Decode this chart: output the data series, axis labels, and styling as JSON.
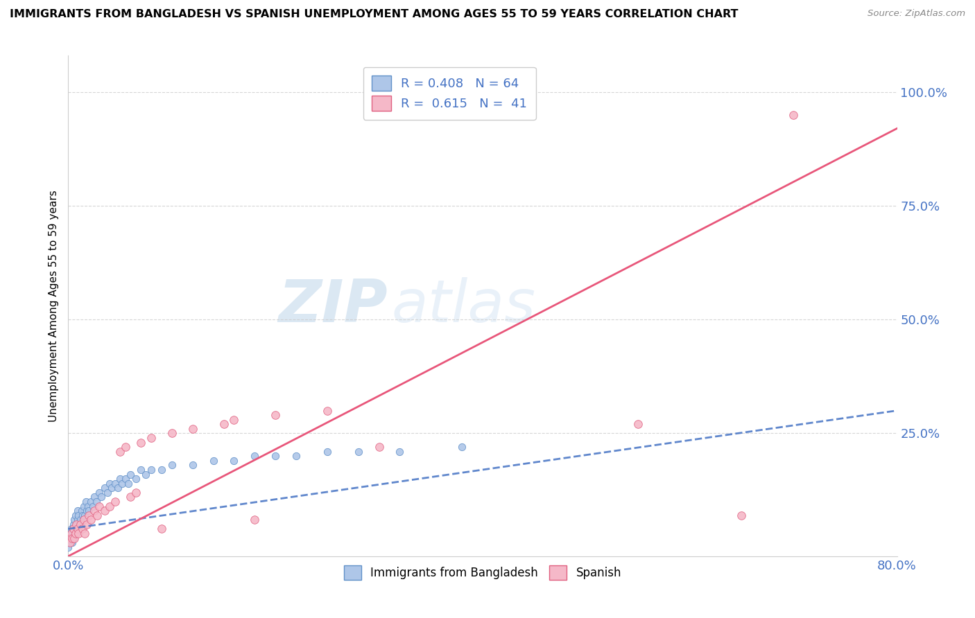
{
  "title": "IMMIGRANTS FROM BANGLADESH VS SPANISH UNEMPLOYMENT AMONG AGES 55 TO 59 YEARS CORRELATION CHART",
  "source": "Source: ZipAtlas.com",
  "xlabel_bottom_left": "0.0%",
  "xlabel_bottom_right": "80.0%",
  "ylabel": "Unemployment Among Ages 55 to 59 years",
  "y_tick_labels": [
    "100.0%",
    "75.0%",
    "50.0%",
    "25.0%"
  ],
  "y_tick_values": [
    1.0,
    0.75,
    0.5,
    0.25
  ],
  "x_range": [
    0.0,
    0.8
  ],
  "y_range": [
    -0.02,
    1.08
  ],
  "blue_R": 0.408,
  "blue_N": 64,
  "pink_R": 0.615,
  "pink_N": 41,
  "blue_color": "#aec6e8",
  "pink_color": "#f5b8c8",
  "blue_edge_color": "#6090c8",
  "pink_edge_color": "#e06080",
  "blue_line_color": "#4472c4",
  "pink_line_color": "#e8567a",
  "blue_scatter": [
    [
      0.0,
      0.0
    ],
    [
      0.001,
      0.01
    ],
    [
      0.001,
      0.02
    ],
    [
      0.002,
      0.01
    ],
    [
      0.002,
      0.03
    ],
    [
      0.003,
      0.02
    ],
    [
      0.003,
      0.04
    ],
    [
      0.004,
      0.01
    ],
    [
      0.004,
      0.03
    ],
    [
      0.005,
      0.02
    ],
    [
      0.005,
      0.05
    ],
    [
      0.006,
      0.03
    ],
    [
      0.006,
      0.06
    ],
    [
      0.007,
      0.04
    ],
    [
      0.007,
      0.07
    ],
    [
      0.008,
      0.03
    ],
    [
      0.008,
      0.05
    ],
    [
      0.009,
      0.06
    ],
    [
      0.009,
      0.08
    ],
    [
      0.01,
      0.04
    ],
    [
      0.01,
      0.07
    ],
    [
      0.011,
      0.05
    ],
    [
      0.012,
      0.06
    ],
    [
      0.013,
      0.08
    ],
    [
      0.014,
      0.07
    ],
    [
      0.015,
      0.09
    ],
    [
      0.016,
      0.07
    ],
    [
      0.017,
      0.1
    ],
    [
      0.018,
      0.08
    ],
    [
      0.019,
      0.09
    ],
    [
      0.02,
      0.08
    ],
    [
      0.022,
      0.1
    ],
    [
      0.024,
      0.09
    ],
    [
      0.025,
      0.11
    ],
    [
      0.027,
      0.1
    ],
    [
      0.03,
      0.12
    ],
    [
      0.032,
      0.11
    ],
    [
      0.035,
      0.13
    ],
    [
      0.038,
      0.12
    ],
    [
      0.04,
      0.14
    ],
    [
      0.042,
      0.13
    ],
    [
      0.045,
      0.14
    ],
    [
      0.048,
      0.13
    ],
    [
      0.05,
      0.15
    ],
    [
      0.052,
      0.14
    ],
    [
      0.055,
      0.15
    ],
    [
      0.058,
      0.14
    ],
    [
      0.06,
      0.16
    ],
    [
      0.065,
      0.15
    ],
    [
      0.07,
      0.17
    ],
    [
      0.075,
      0.16
    ],
    [
      0.08,
      0.17
    ],
    [
      0.09,
      0.17
    ],
    [
      0.1,
      0.18
    ],
    [
      0.12,
      0.18
    ],
    [
      0.14,
      0.19
    ],
    [
      0.16,
      0.19
    ],
    [
      0.18,
      0.2
    ],
    [
      0.2,
      0.2
    ],
    [
      0.22,
      0.2
    ],
    [
      0.25,
      0.21
    ],
    [
      0.28,
      0.21
    ],
    [
      0.32,
      0.21
    ],
    [
      0.38,
      0.22
    ]
  ],
  "pink_scatter": [
    [
      0.001,
      0.02
    ],
    [
      0.002,
      0.01
    ],
    [
      0.003,
      0.03
    ],
    [
      0.004,
      0.02
    ],
    [
      0.005,
      0.04
    ],
    [
      0.006,
      0.02
    ],
    [
      0.007,
      0.03
    ],
    [
      0.008,
      0.05
    ],
    [
      0.009,
      0.04
    ],
    [
      0.01,
      0.03
    ],
    [
      0.012,
      0.05
    ],
    [
      0.014,
      0.04
    ],
    [
      0.015,
      0.06
    ],
    [
      0.016,
      0.03
    ],
    [
      0.018,
      0.05
    ],
    [
      0.02,
      0.07
    ],
    [
      0.022,
      0.06
    ],
    [
      0.025,
      0.08
    ],
    [
      0.028,
      0.07
    ],
    [
      0.03,
      0.09
    ],
    [
      0.035,
      0.08
    ],
    [
      0.04,
      0.09
    ],
    [
      0.045,
      0.1
    ],
    [
      0.05,
      0.21
    ],
    [
      0.055,
      0.22
    ],
    [
      0.06,
      0.11
    ],
    [
      0.065,
      0.12
    ],
    [
      0.07,
      0.23
    ],
    [
      0.08,
      0.24
    ],
    [
      0.09,
      0.04
    ],
    [
      0.1,
      0.25
    ],
    [
      0.12,
      0.26
    ],
    [
      0.15,
      0.27
    ],
    [
      0.16,
      0.28
    ],
    [
      0.18,
      0.06
    ],
    [
      0.2,
      0.29
    ],
    [
      0.25,
      0.3
    ],
    [
      0.3,
      0.22
    ],
    [
      0.55,
      0.27
    ],
    [
      0.65,
      0.07
    ],
    [
      0.7,
      0.95
    ]
  ],
  "watermark_zip": "ZIP",
  "watermark_atlas": "atlas",
  "figsize": [
    14.06,
    8.92
  ],
  "dpi": 100
}
